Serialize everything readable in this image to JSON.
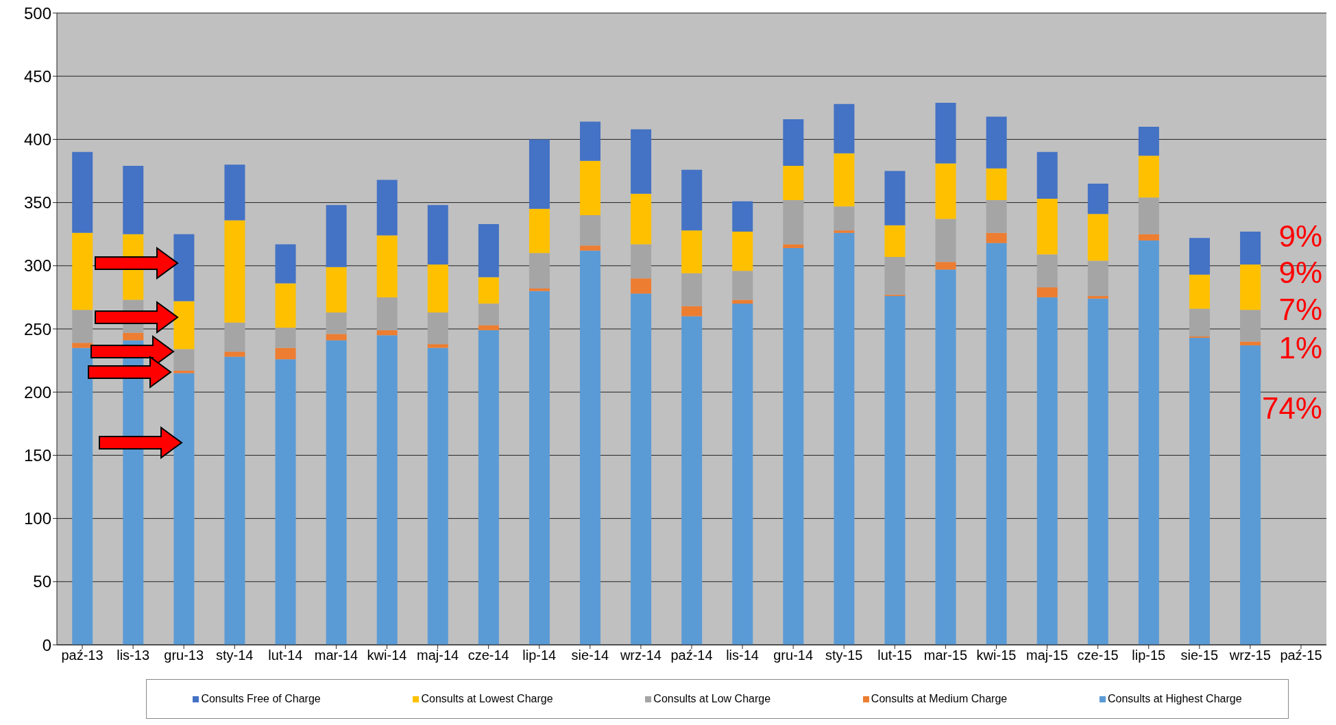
{
  "chart_data": {
    "type": "bar",
    "stacked": true,
    "categories": [
      "paź-13",
      "lis-13",
      "gru-13",
      "sty-14",
      "lut-14",
      "mar-14",
      "kwi-14",
      "maj-14",
      "cze-14",
      "lip-14",
      "sie-14",
      "wrz-14",
      "paź-14",
      "lis-14",
      "gru-14",
      "sty-15",
      "lut-15",
      "mar-15",
      "kwi-15",
      "maj-15",
      "cze-15",
      "lip-15",
      "sie-15",
      "wrz-15",
      "paź-15"
    ],
    "series": [
      {
        "name": "Consults at Highest Charge",
        "color": "#5b9bd5",
        "values": [
          235,
          241,
          215,
          228,
          226,
          241,
          245,
          235,
          249,
          280,
          312,
          278,
          260,
          270,
          314,
          326,
          276,
          297,
          318,
          275,
          274,
          320,
          243,
          237,
          null
        ]
      },
      {
        "name": "Consults at Medium Charge",
        "color": "#ed7d31",
        "values": [
          4,
          6,
          2,
          4,
          9,
          5,
          4,
          3,
          4,
          2,
          4,
          12,
          8,
          3,
          3,
          2,
          1,
          6,
          8,
          8,
          2,
          5,
          1,
          3,
          null
        ]
      },
      {
        "name": "Consults at Low Charge",
        "color": "#a5a5a5",
        "values": [
          26,
          26,
          17,
          23,
          16,
          17,
          26,
          25,
          17,
          28,
          24,
          27,
          26,
          23,
          35,
          19,
          30,
          34,
          26,
          26,
          28,
          29,
          22,
          25,
          null
        ]
      },
      {
        "name": "Consults at Lowest Charge",
        "color": "#ffc000",
        "values": [
          61,
          52,
          38,
          81,
          35,
          36,
          49,
          38,
          21,
          35,
          43,
          40,
          34,
          31,
          27,
          42,
          25,
          44,
          25,
          44,
          37,
          33,
          27,
          36,
          null
        ]
      },
      {
        "name": "Consults Free of Charge",
        "color": "#4472c4",
        "values": [
          64,
          54,
          53,
          44,
          31,
          49,
          44,
          47,
          42,
          55,
          31,
          51,
          48,
          24,
          37,
          39,
          43,
          48,
          41,
          37,
          24,
          23,
          29,
          26,
          null
        ]
      }
    ],
    "ylim": [
      0,
      500
    ],
    "yticks": [
      0,
      50,
      100,
      150,
      200,
      250,
      300,
      350,
      400,
      450,
      500
    ],
    "grid": "y",
    "legend": "bottom",
    "annotations": [
      "9%",
      "9%",
      "7%",
      "1%",
      "74%"
    ]
  }
}
